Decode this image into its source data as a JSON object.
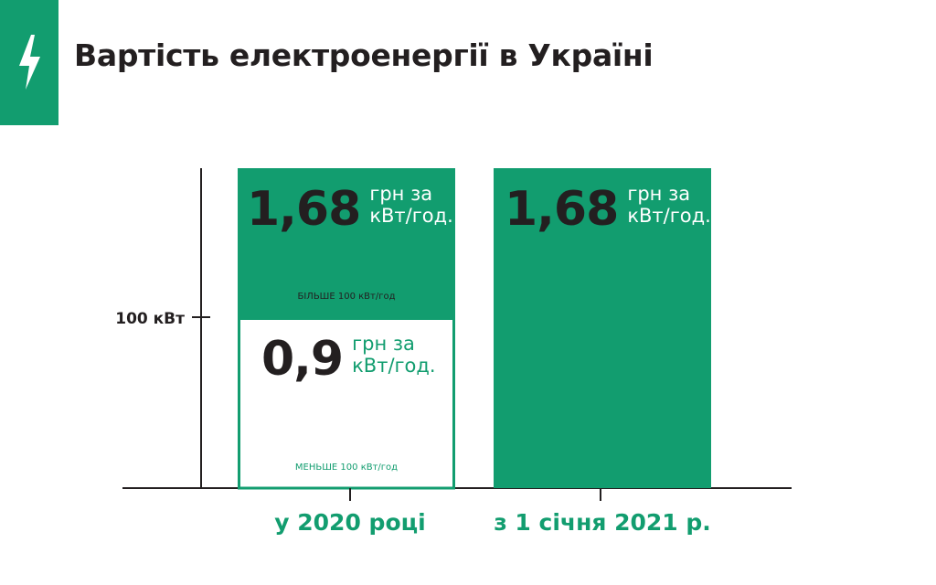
{
  "header": {
    "title": "Вартість електроенергії в Україні",
    "icon": "lightning-bolt-icon",
    "accent_color": "#129d6f"
  },
  "chart_data": {
    "type": "bar",
    "title": "Вартість електроенергії в Україні",
    "categories": [
      "у 2020 році",
      "з 1 січня 2021 р."
    ],
    "y_axis": {
      "tick_value": 100,
      "tick_label": "100 кВт"
    },
    "bars": [
      {
        "category": "у 2020 році",
        "segments": [
          {
            "tier": "lower",
            "price": "0,9",
            "price_value": 0.9,
            "unit_line1": "грн за",
            "unit_line2": "кВт/год.",
            "note": "МЕНЬШЕ 100 кВт/год",
            "fill": "#ffffff",
            "border": "#129d6f"
          },
          {
            "tier": "upper",
            "price": "1,68",
            "price_value": 1.68,
            "unit_line1": "грн за",
            "unit_line2": "кВт/год.",
            "note": "БІЛЬШЕ 100 кВт/год",
            "fill": "#129d6f"
          }
        ]
      },
      {
        "category": "з 1 січня 2021 р.",
        "segments": [
          {
            "tier": "all",
            "price": "1,68",
            "price_value": 1.68,
            "unit_line1": "грн за",
            "unit_line2": "кВт/год.",
            "fill": "#129d6f"
          }
        ]
      }
    ],
    "colors": {
      "green": "#129d6f",
      "dark": "#231f20",
      "white": "#ffffff"
    }
  }
}
